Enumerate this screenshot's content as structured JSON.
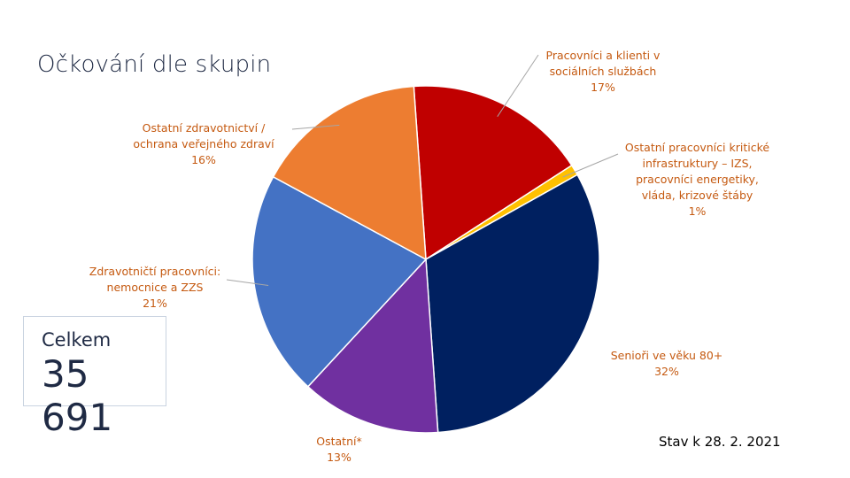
{
  "title": "Očkování dle skupin",
  "total": {
    "label": "Celkem",
    "value": "35 691"
  },
  "date_note": "Stav k 28. 2. 2021",
  "chart_data": {
    "type": "pie",
    "title": "Očkování dle skupin",
    "slices": [
      {
        "name_lines": [
          "Pracovníci a klienti v",
          "sociálních službách"
        ],
        "percent_label": "17%",
        "value": 17,
        "color": "#C00000"
      },
      {
        "name_lines": [
          "Ostatní pracovníci kritické",
          "infrastruktury – IZS,",
          "pracovníci energetiky,",
          "vláda, krizové štáby"
        ],
        "percent_label": "1%",
        "value": 1,
        "color": "#FFC000"
      },
      {
        "name_lines": [
          "Senioři ve věku 80+"
        ],
        "percent_label": "32%",
        "value": 32,
        "color": "#002060"
      },
      {
        "name_lines": [
          "Ostatní*"
        ],
        "percent_label": "13%",
        "value": 13,
        "color": "#7030A0"
      },
      {
        "name_lines": [
          "Zdravotničtí pracovníci:",
          "nemocnice a ZZS"
        ],
        "percent_label": "21%",
        "value": 21,
        "color": "#4472C4"
      },
      {
        "name_lines": [
          "Ostatní zdravotnictví /",
          "ochrana veřejného zdraví"
        ],
        "percent_label": "16%",
        "value": 16,
        "color": "#ED7D31"
      }
    ],
    "label_color": "#C55A11"
  }
}
